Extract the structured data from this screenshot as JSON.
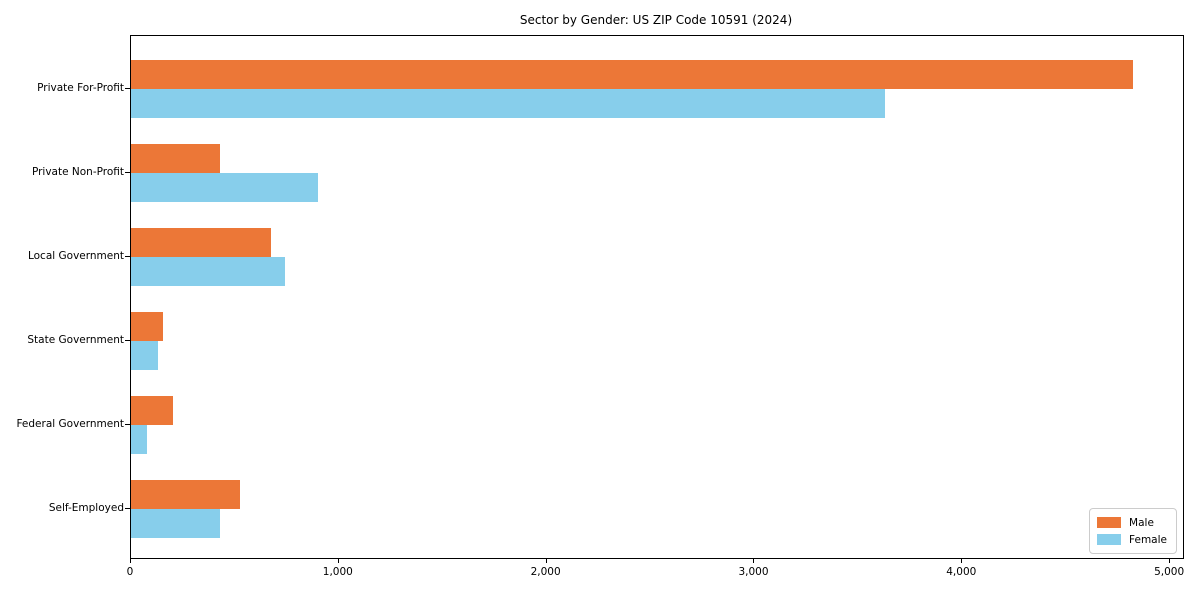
{
  "title": "Sector by Gender: US ZIP Code 10591 (2024)",
  "chart_data": {
    "type": "bar",
    "orientation": "horizontal",
    "title": "Sector by Gender: US ZIP Code 10591 (2024)",
    "categories": [
      "Private For-Profit",
      "Private Non-Profit",
      "Local Government",
      "State Government",
      "Federal Government",
      "Self-Employed"
    ],
    "series": [
      {
        "name": "Male",
        "color": "#EC7737",
        "values": [
          4820,
          430,
          675,
          155,
          200,
          525
        ]
      },
      {
        "name": "Female",
        "color": "#87CEEB",
        "values": [
          3630,
          900,
          740,
          130,
          75,
          430
        ]
      }
    ],
    "xlabel": "",
    "ylabel": "",
    "x_ticks": [
      0,
      1000,
      2000,
      3000,
      4000,
      5000
    ],
    "x_tick_labels": [
      "0",
      "1,000",
      "2,000",
      "3,000",
      "4,000",
      "5,000"
    ],
    "xlim": [
      0,
      5062
    ],
    "grid": false,
    "legend_position": "lower right",
    "background_color": "#ffffff",
    "spine_color": "#000000"
  }
}
